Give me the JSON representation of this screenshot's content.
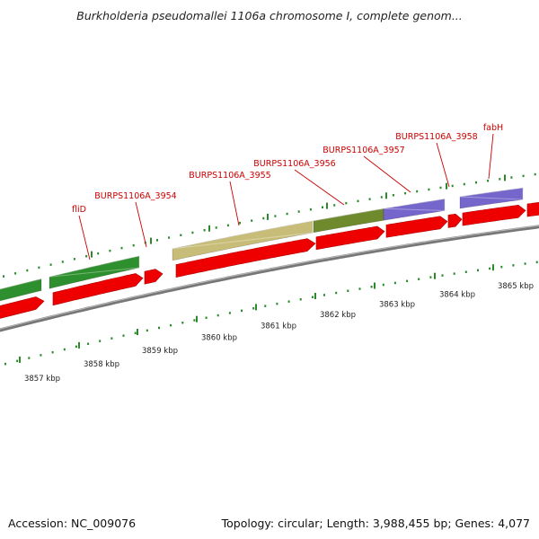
{
  "title": "Burkholderia pseudomallei 1106a chromosome I, complete genom...",
  "footer": {
    "accession": "Accession: NC_009076",
    "summary": "Topology: circular; Length: 3,988,455 bp; Genes: 4,077"
  },
  "colors": {
    "cds": "#ee0000",
    "backbone": "#777777",
    "tick": "#2a8a2a",
    "label": "#cc0000",
    "axis_label": "#222222",
    "feature_green": "#2d8f2d",
    "feature_olive": "#6e8a2d",
    "feature_khaki": "#c8bd78",
    "feature_purple": "#7566cc"
  },
  "scale": {
    "ticks": [
      {
        "label": "3857 kbp"
      },
      {
        "label": "3858 kbp"
      },
      {
        "label": "3859 kbp"
      },
      {
        "label": "3860 kbp"
      },
      {
        "label": "3861 kbp"
      },
      {
        "label": "3862 kbp"
      },
      {
        "label": "3863 kbp"
      },
      {
        "label": "3864 kbp"
      },
      {
        "label": "3865 kbp"
      }
    ]
  },
  "genes": [
    {
      "name": "fliD"
    },
    {
      "name": "BURPS1106A_3954"
    },
    {
      "name": "BURPS1106A_3955"
    },
    {
      "name": "BURPS1106A_3956"
    },
    {
      "name": "BURPS1106A_3957"
    },
    {
      "name": "BURPS1106A_3958"
    },
    {
      "name": "fabH"
    }
  ]
}
